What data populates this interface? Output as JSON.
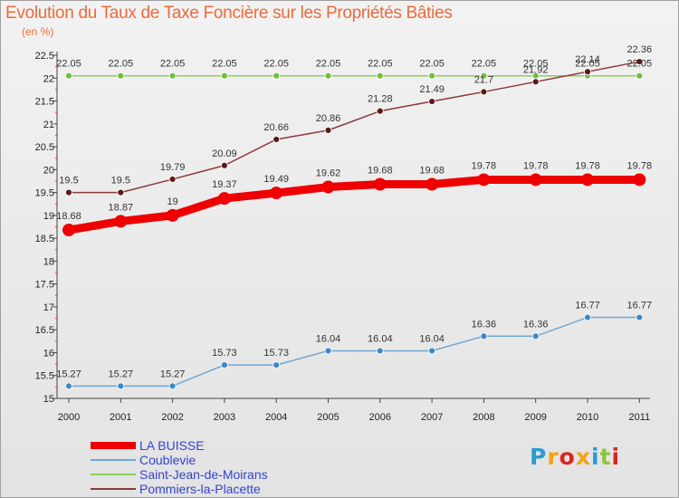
{
  "title": "Evolution du Taux de Taxe Foncière sur les Propriétés Bâties",
  "units": "(en %)",
  "logo": {
    "text": "Proxiti",
    "colors": [
      "#2a9ad6",
      "#f2a318",
      "#d8261f",
      "#f2a318",
      "#2a9ad6",
      "#8fc43a",
      "#d8261f"
    ]
  },
  "chart_data": {
    "type": "line",
    "x": [
      "2000",
      "2001",
      "2002",
      "2003",
      "2004",
      "2005",
      "2006",
      "2007",
      "2008",
      "2009",
      "2010",
      "2011"
    ],
    "ylim": [
      15,
      22.5
    ],
    "yticks": [
      "15",
      "15.5",
      "16",
      "16.5",
      "17",
      "17.5",
      "18",
      "18.5",
      "19",
      "19.5",
      "20",
      "20.5",
      "21",
      "21.5",
      "22",
      "22.5"
    ],
    "grid": false,
    "legend_position": "bottom-left",
    "series": [
      {
        "name": "LA BUISSE",
        "color": "#ee0000",
        "width": 9,
        "marker": 7,
        "values": [
          18.68,
          18.87,
          19,
          19.37,
          19.49,
          19.62,
          19.68,
          19.68,
          19.78,
          19.78,
          19.78,
          19.78
        ],
        "labels": [
          "18.68",
          "18.87",
          "19",
          "19.37",
          "19.49",
          "19.62",
          "19.68",
          "19.68",
          "19.78",
          "19.78",
          "19.78",
          "19.78"
        ]
      },
      {
        "name": "Coublevie",
        "color": "#6fa7d6",
        "width": 1.5,
        "marker": 3.5,
        "values": [
          15.27,
          15.27,
          15.27,
          15.73,
          15.73,
          16.04,
          16.04,
          16.04,
          16.36,
          16.36,
          16.77,
          16.77
        ],
        "labels": [
          "15.27",
          "15.27",
          "15.27",
          "15.73",
          "15.73",
          "16.04",
          "16.04",
          "16.04",
          "16.36",
          "16.36",
          "16.77",
          "16.77"
        ]
      },
      {
        "name": "Saint-Jean-de-Moirans",
        "color": "#8cd05a",
        "width": 1.5,
        "marker": 3.5,
        "values": [
          22.05,
          22.05,
          22.05,
          22.05,
          22.05,
          22.05,
          22.05,
          22.05,
          22.05,
          22.05,
          22.05,
          22.05
        ],
        "labels": [
          "22.05",
          "22.05",
          "22.05",
          "22.05",
          "22.05",
          "22.05",
          "22.05",
          "22.05",
          "22.05",
          "22.05",
          "22.05",
          "22.05"
        ]
      },
      {
        "name": "Pommiers-la-Placette",
        "color": "#8b3a3a",
        "width": 1.5,
        "marker": 3.5,
        "values": [
          19.5,
          19.5,
          19.79,
          20.09,
          20.66,
          20.86,
          21.28,
          21.49,
          21.7,
          21.92,
          22.14,
          22.36
        ],
        "labels": [
          "19.5",
          "19.5",
          "19.79",
          "20.09",
          "20.66",
          "20.86",
          "21.28",
          "21.49",
          "21.7",
          "21.92",
          "22.14",
          "22.36"
        ]
      }
    ]
  }
}
